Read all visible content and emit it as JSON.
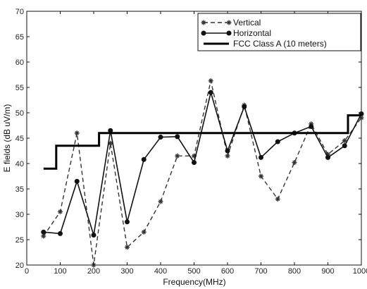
{
  "chart_data": {
    "type": "line",
    "title": "",
    "xlabel": "Frequency(MHz)",
    "ylabel": "E fields (dB uV/m)",
    "xlim": [
      0,
      1000
    ],
    "ylim": [
      20,
      70
    ],
    "xticks": [
      "0",
      "100",
      "200",
      "300",
      "400",
      "500",
      "600",
      "700",
      "800",
      "900",
      "1000"
    ],
    "yticks": [
      "20",
      "25",
      "30",
      "35",
      "40",
      "45",
      "50",
      "55",
      "60",
      "65",
      "70"
    ],
    "grid": false,
    "legend_position": "top-right",
    "series": [
      {
        "name": "Vertical",
        "style": "dashed",
        "marker": "asterisk",
        "color": "#333333",
        "x": [
          50,
          100,
          150,
          200,
          250,
          300,
          350,
          400,
          450,
          500,
          550,
          600,
          650,
          700,
          750,
          800,
          850,
          900,
          950,
          1000
        ],
        "y": [
          25.7,
          30.5,
          46,
          20,
          44,
          23.5,
          26.5,
          32.5,
          41.5,
          41.5,
          56.3,
          41.5,
          51.5,
          37.5,
          33,
          40.2,
          47.8,
          41.8,
          44.5,
          49
        ]
      },
      {
        "name": "Horizontal",
        "style": "solid",
        "marker": "circle",
        "color": "#111111",
        "x": [
          50,
          100,
          150,
          200,
          250,
          300,
          350,
          400,
          450,
          500,
          550,
          600,
          650,
          700,
          750,
          800,
          850,
          900,
          950,
          1000
        ],
        "y": [
          26.5,
          26.2,
          36.5,
          25.9,
          46.5,
          28.5,
          40.8,
          45.2,
          45.3,
          40.2,
          54,
          42.5,
          51.2,
          41.2,
          44.3,
          46,
          47.3,
          41.2,
          43.5,
          49.8
        ]
      },
      {
        "name": "FCC Class A (10 meters)",
        "style": "step",
        "marker": "none",
        "color": "#000000",
        "x": [
          50,
          88,
          88,
          216,
          216,
          960,
          960,
          1000
        ],
        "y": [
          39,
          39,
          43.5,
          43.5,
          46,
          46,
          49.5,
          49.5
        ]
      }
    ]
  }
}
